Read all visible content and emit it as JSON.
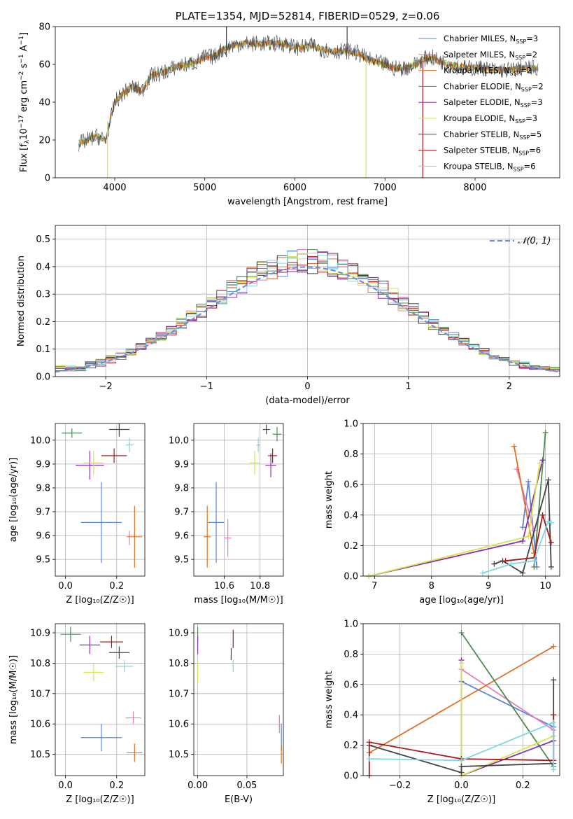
{
  "colors": {
    "Chabrier MILES": "#5b84d6",
    "Salpeter MILES": "#ea7db8",
    "Kroupa MILES": "#e07020",
    "Chabrier ELODIE": "#4e8a55",
    "Salpeter ELODIE": "#8b2fb0",
    "Kroupa ELODIE": "#d4e64a",
    "Chabrier STELIB": "#444444",
    "Salpeter STELIB": "#a81616",
    "Kroupa STELIB": "#7ed8e0",
    "normal": "#6a8fd8"
  },
  "chart_data": [
    {
      "id": "spectrum",
      "type": "line",
      "title": "PLATE=1354, MJD=52814, FIBERID=0529, z=0.06",
      "xlabel": "wavelength [Angstrom, rest frame]",
      "ylabel_parts": [
        "Flux [f",
        "λ",
        "10",
        "−17",
        " erg cm",
        "−2",
        " s",
        "−1",
        " A",
        "−1",
        "]"
      ],
      "xlim": [
        3340,
        8940
      ],
      "ylim": [
        0,
        80
      ],
      "xticks": [
        4000,
        5000,
        6000,
        7000,
        8000
      ],
      "yticks": [
        0,
        20,
        40,
        60,
        80
      ],
      "grid": false,
      "legend_placement": "top-right",
      "legend": [
        {
          "series": "Chabrier MILES",
          "label": "Chabrier MILES, N",
          "sub": "SSP",
          "tail": "=3"
        },
        {
          "series": "Salpeter MILES",
          "label": "Salpeter MILES, N",
          "sub": "SSP",
          "tail": "=2"
        },
        {
          "series": "Kroupa MILES",
          "label": "Kroupa MILES, N",
          "sub": "SSP",
          "tail": "=2"
        },
        {
          "series": "Chabrier ELODIE",
          "label": "Chabrier ELODIE, N",
          "sub": "SSP",
          "tail": "=2"
        },
        {
          "series": "Salpeter ELODIE",
          "label": "Salpeter ELODIE, N",
          "sub": "SSP",
          "tail": "=3"
        },
        {
          "series": "Kroupa ELODIE",
          "label": "Kroupa ELODIE, N",
          "sub": "SSP",
          "tail": "=3"
        },
        {
          "series": "Chabrier STELIB",
          "label": "Chabrier STELIB, N",
          "sub": "SSP",
          "tail": "=5"
        },
        {
          "series": "Salpeter STELIB",
          "label": "Salpeter STELIB, N",
          "sub": "SSP",
          "tail": "=6"
        },
        {
          "series": "Kroupa STELIB",
          "label": "Kroupa STELIB, N",
          "sub": "SSP",
          "tail": "=6"
        }
      ],
      "continuum": {
        "x": [
          3600,
          3700,
          3800,
          3900,
          4000,
          4100,
          4200,
          4300,
          4400,
          4500,
          4600,
          4700,
          4800,
          4900,
          5000,
          5100,
          5200,
          5300,
          5400,
          5500,
          5600,
          5700,
          5800,
          5900,
          6000,
          6100,
          6200,
          6300,
          6400,
          6500,
          6600,
          6700,
          6800,
          6900,
          7000,
          7100,
          7200,
          7300,
          7400,
          7500,
          7600,
          7700,
          7800,
          7900,
          8000,
          8100,
          8200,
          8300,
          8400,
          8500,
          8600,
          8700
        ],
        "y": [
          18,
          20,
          22,
          20,
          40,
          45,
          48,
          46,
          54,
          55,
          57,
          59,
          60,
          61,
          64,
          64,
          68,
          70,
          71,
          71,
          71,
          71,
          71,
          71,
          69,
          69,
          70,
          68,
          67,
          67,
          67,
          66,
          63,
          61,
          60,
          58,
          58,
          59,
          62,
          64,
          62,
          60,
          59,
          58,
          58,
          58,
          57,
          57,
          57,
          58,
          58,
          58
        ]
      },
      "spikes": [
        {
          "x": 3920,
          "y0": 30,
          "y1": 0,
          "series": "Kroupa ELODIE"
        },
        {
          "x": 5240,
          "y0": 64,
          "y1": 80,
          "series": "Chabrier STELIB"
        },
        {
          "x": 6580,
          "y0": 67,
          "y1": 80,
          "series": "Chabrier STELIB"
        },
        {
          "x": 6790,
          "y0": 62,
          "y1": 0,
          "series": "Kroupa ELODIE"
        },
        {
          "x": 7420,
          "y0": 62,
          "y1": 0,
          "series": "Salpeter STELIB"
        }
      ]
    },
    {
      "id": "residuals",
      "type": "histogram",
      "xlabel": "(data-model)/error",
      "ylabel": "Normed distribution",
      "xlim": [
        -2.5,
        2.5
      ],
      "ylim": [
        0,
        0.55
      ],
      "xticks": [
        -2,
        -1,
        0,
        1,
        2
      ],
      "yticks": [
        0.0,
        0.1,
        0.2,
        0.3,
        0.4,
        0.5
      ],
      "grid": true,
      "legend_placement": "top-right",
      "legend": [
        {
          "label": "𝒩(0, 1)"
        }
      ],
      "bin_width": 0.1,
      "bins_from": -2.5
    },
    {
      "id": "age_vs_Z",
      "type": "errorbar",
      "xlabel": "Z [log₁₀(Z/Z☉)]",
      "ylabel": "age  [log₁₀(age/yr)]",
      "xlim": [
        -0.04,
        0.31
      ],
      "ylim": [
        9.43,
        10.07
      ],
      "xticks": [
        0.0,
        0.2
      ],
      "yticks": [
        9.5,
        9.6,
        9.7,
        9.8,
        9.9,
        10.0
      ],
      "grid": true,
      "points": [
        {
          "series": "Chabrier MILES",
          "x": 0.14,
          "y": 9.655,
          "ex": 0.08,
          "ey": 0.17
        },
        {
          "series": "Salpeter MILES",
          "x": 0.25,
          "y": 9.59,
          "ex": 0.0,
          "ey": 0.03
        },
        {
          "series": "Kroupa MILES",
          "x": 0.27,
          "y": 9.595,
          "ex": 0.03,
          "ey": 0.13
        },
        {
          "series": "Chabrier ELODIE",
          "x": 0.025,
          "y": 10.03,
          "ex": 0.04,
          "ey": 0.02
        },
        {
          "series": "Salpeter ELODIE",
          "x": 0.095,
          "y": 9.895,
          "ex": 0.055,
          "ey": 0.06
        },
        {
          "series": "Kroupa ELODIE",
          "x": 0.11,
          "y": 9.905,
          "ex": 0.04,
          "ey": 0.05
        },
        {
          "series": "Chabrier STELIB",
          "x": 0.21,
          "y": 10.045,
          "ex": 0.04,
          "ey": 0.03
        },
        {
          "series": "Salpeter STELIB",
          "x": 0.19,
          "y": 9.935,
          "ex": 0.05,
          "ey": 0.03
        },
        {
          "series": "Kroupa STELIB",
          "x": 0.25,
          "y": 9.98,
          "ex": 0.015,
          "ey": 0.03
        }
      ]
    },
    {
      "id": "age_vs_mass",
      "type": "errorbar",
      "xlabel": "mass [log₁₀(M/M☉)]",
      "ylabel": "",
      "xlim": [
        10.43,
        10.93
      ],
      "ylim": [
        9.43,
        10.07
      ],
      "xticks": [
        10.6,
        10.8
      ],
      "yticks": [
        9.5,
        9.6,
        9.7,
        9.8,
        9.9,
        10.0
      ],
      "grid": true,
      "points": [
        {
          "series": "Chabrier MILES",
          "x": 10.555,
          "y": 9.655,
          "ex": 0.045,
          "ey": 0.17
        },
        {
          "series": "Salpeter MILES",
          "x": 10.62,
          "y": 9.59,
          "ex": 0.02,
          "ey": 0.08
        },
        {
          "series": "Kroupa MILES",
          "x": 10.505,
          "y": 9.595,
          "ex": 0.02,
          "ey": 0.13
        },
        {
          "series": "Chabrier ELODIE",
          "x": 10.895,
          "y": 10.025,
          "ex": 0.025,
          "ey": 0.03
        },
        {
          "series": "Salpeter ELODIE",
          "x": 10.86,
          "y": 9.895,
          "ex": 0.03,
          "ey": 0.05
        },
        {
          "series": "Kroupa ELODIE",
          "x": 10.77,
          "y": 9.905,
          "ex": 0.03,
          "ey": 0.05
        },
        {
          "series": "Chabrier STELIB",
          "x": 10.835,
          "y": 10.045,
          "ex": 0.02,
          "ey": 0.02
        },
        {
          "series": "Salpeter STELIB",
          "x": 10.87,
          "y": 9.935,
          "ex": 0.025,
          "ey": 0.03
        },
        {
          "series": "Kroupa STELIB",
          "x": 10.79,
          "y": 9.98,
          "ex": 0.01,
          "ey": 0.03
        }
      ]
    },
    {
      "id": "weight_vs_age",
      "type": "line",
      "xlabel": "age  [log₁₀(age/yr)]",
      "ylabel": "mass weight",
      "xlim": [
        6.8,
        10.25
      ],
      "ylim": [
        0,
        1.0
      ],
      "xticks": [
        7,
        8,
        9,
        10
      ],
      "yticks": [
        0.0,
        0.2,
        0.4,
        0.6,
        0.8,
        1.0
      ],
      "grid": true,
      "series": [
        {
          "name": "Chabrier MILES",
          "x": [
            9.6,
            9.7,
            9.85
          ],
          "y": [
            0.32,
            0.62,
            0.06
          ]
        },
        {
          "name": "Salpeter MILES",
          "x": [
            9.5,
            9.8
          ],
          "y": [
            0.7,
            0.3
          ]
        },
        {
          "name": "Kroupa MILES",
          "x": [
            9.45,
            9.8
          ],
          "y": [
            0.85,
            0.15
          ]
        },
        {
          "name": "Chabrier ELODIE",
          "x": [
            9.8,
            10.0
          ],
          "y": [
            0.06,
            0.94
          ]
        },
        {
          "name": "Salpeter ELODIE",
          "x": [
            6.9,
            9.6,
            9.95
          ],
          "y": [
            0.0,
            0.23,
            0.76
          ]
        },
        {
          "name": "Kroupa ELODIE",
          "x": [
            6.9,
            9.7,
            9.9
          ],
          "y": [
            0.0,
            0.26,
            0.74
          ]
        },
        {
          "name": "Chabrier STELIB",
          "x": [
            9.1,
            9.25,
            9.6,
            10.05,
            10.1
          ],
          "y": [
            0.08,
            0.1,
            0.02,
            0.63,
            0.06
          ]
        },
        {
          "name": "Salpeter STELIB",
          "x": [
            9.3,
            9.8,
            9.95,
            10.1
          ],
          "y": [
            0.1,
            0.12,
            0.4,
            0.22
          ]
        },
        {
          "name": "Kroupa STELIB",
          "x": [
            8.9,
            9.4,
            9.8,
            10.05,
            10.1
          ],
          "y": [
            0.02,
            0.08,
            0.1,
            0.36,
            0.35
          ]
        }
      ]
    },
    {
      "id": "mass_vs_Z",
      "type": "errorbar",
      "xlabel": "Z [log₁₀(Z/Z☉)]",
      "ylabel": "mass [log₁₀(M/M☉)]",
      "xlim": [
        -0.04,
        0.31
      ],
      "ylim": [
        10.43,
        10.93
      ],
      "xticks": [
        0.0,
        0.2
      ],
      "yticks": [
        10.5,
        10.6,
        10.7,
        10.8,
        10.9
      ],
      "grid": true,
      "points": [
        {
          "series": "Chabrier MILES",
          "x": 0.14,
          "y": 10.555,
          "ex": 0.08,
          "ey": 0.045
        },
        {
          "series": "Salpeter MILES",
          "x": 0.265,
          "y": 10.62,
          "ex": 0.03,
          "ey": 0.02
        },
        {
          "series": "Kroupa MILES",
          "x": 0.27,
          "y": 10.505,
          "ex": 0.03,
          "ey": 0.03
        },
        {
          "series": "Chabrier ELODIE",
          "x": 0.02,
          "y": 10.895,
          "ex": 0.04,
          "ey": 0.025
        },
        {
          "series": "Salpeter ELODIE",
          "x": 0.095,
          "y": 10.86,
          "ex": 0.04,
          "ey": 0.03
        },
        {
          "series": "Kroupa ELODIE",
          "x": 0.11,
          "y": 10.77,
          "ex": 0.04,
          "ey": 0.03
        },
        {
          "series": "Chabrier STELIB",
          "x": 0.21,
          "y": 10.835,
          "ex": 0.04,
          "ey": 0.02
        },
        {
          "series": "Salpeter STELIB",
          "x": 0.18,
          "y": 10.87,
          "ex": 0.045,
          "ey": 0.02
        },
        {
          "series": "Kroupa STELIB",
          "x": 0.23,
          "y": 10.79,
          "ex": 0.035,
          "ey": 0.02
        }
      ]
    },
    {
      "id": "mass_vs_EBV",
      "type": "errorbar",
      "xlabel": "E(B-V)",
      "ylabel": "",
      "xlim": [
        -0.004,
        0.087
      ],
      "ylim": [
        10.43,
        10.93
      ],
      "xticks": [
        0.0,
        0.05
      ],
      "yticks": [
        10.5,
        10.6,
        10.7,
        10.8,
        10.9
      ],
      "grid": true,
      "points": [
        {
          "series": "Chabrier MILES",
          "x": 0.085,
          "y": 10.555,
          "ex": 0.0,
          "ey": 0.045
        },
        {
          "series": "Salpeter MILES",
          "x": 0.083,
          "y": 10.6,
          "ex": 0.0,
          "ey": 0.03
        },
        {
          "series": "Kroupa MILES",
          "x": 0.085,
          "y": 10.5,
          "ex": 0.0,
          "ey": 0.03
        },
        {
          "series": "Chabrier ELODIE",
          "x": 0.0,
          "y": 10.895,
          "ex": 0.0,
          "ey": 0.025
        },
        {
          "series": "Salpeter ELODIE",
          "x": 0.0,
          "y": 10.86,
          "ex": 0.0,
          "ey": 0.03
        },
        {
          "series": "Kroupa ELODIE",
          "x": 0.0,
          "y": 10.77,
          "ex": 0.0,
          "ey": 0.03
        },
        {
          "series": "Chabrier STELIB",
          "x": 0.034,
          "y": 10.83,
          "ex": 0.0,
          "ey": 0.02
        },
        {
          "series": "Salpeter STELIB",
          "x": 0.036,
          "y": 10.88,
          "ex": 0.0,
          "ey": 0.03
        },
        {
          "series": "Kroupa STELIB",
          "x": 0.036,
          "y": 10.79,
          "ex": 0.0,
          "ey": 0.02
        }
      ]
    },
    {
      "id": "weight_vs_Z",
      "type": "line",
      "xlabel": "Z [log₁₀(Z/Z☉)]",
      "ylabel": "mass weight",
      "xlim": [
        -0.32,
        0.32
      ],
      "ylim": [
        0,
        1.0
      ],
      "xticks": [
        -0.2,
        0.0,
        0.2
      ],
      "yticks": [
        0.0,
        0.2,
        0.4,
        0.6,
        0.8,
        1.0
      ],
      "grid": true,
      "series": [
        {
          "name": "Chabrier MILES",
          "x": [
            0.0,
            0.3
          ],
          "y": [
            0.62,
            0.32
          ]
        },
        {
          "name": "Salpeter MILES",
          "x": [
            0.0,
            0.3
          ],
          "y": [
            0.7,
            0.3
          ]
        },
        {
          "name": "Kroupa MILES",
          "x": [
            -0.3,
            0.3
          ],
          "y": [
            0.15,
            0.85
          ]
        },
        {
          "name": "Chabrier ELODIE",
          "x": [
            0.0,
            0.3
          ],
          "y": [
            0.94,
            0.06
          ]
        },
        {
          "name": "Salpeter ELODIE",
          "x": [
            0.0,
            0.0,
            0.3
          ],
          "y": [
            0.76,
            0.0,
            0.23
          ]
        },
        {
          "name": "Kroupa ELODIE",
          "x": [
            0.0,
            0.0,
            0.3
          ],
          "y": [
            0.74,
            0.0,
            0.26
          ]
        },
        {
          "name": "Chabrier STELIB",
          "x": [
            -0.3,
            0.0,
            0.0,
            0.3,
            0.3
          ],
          "y": [
            0.2,
            0.02,
            0.06,
            0.08,
            0.63
          ]
        },
        {
          "name": "Salpeter STELIB",
          "x": [
            -0.3,
            -0.3,
            0.0,
            0.3,
            0.3
          ],
          "y": [
            0.0,
            0.22,
            0.11,
            0.1,
            0.4
          ]
        },
        {
          "name": "Kroupa STELIB",
          "x": [
            -0.3,
            0.0,
            0.3,
            0.3
          ],
          "y": [
            0.11,
            0.1,
            0.35,
            0.04
          ]
        }
      ]
    }
  ]
}
